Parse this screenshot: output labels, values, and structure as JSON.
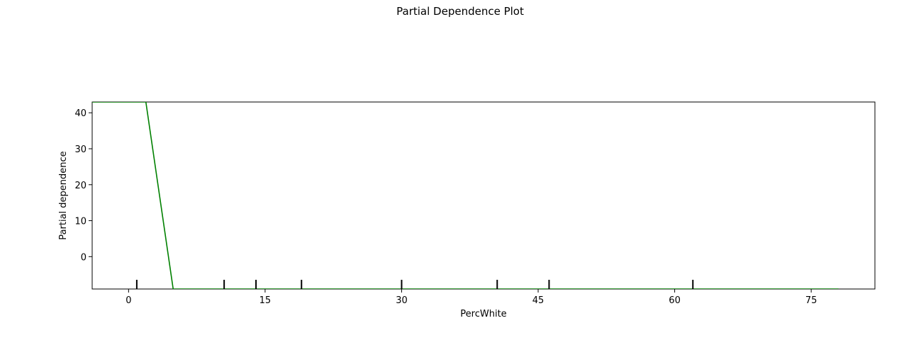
{
  "figure": {
    "title": "Partial Dependence Plot"
  },
  "chart_data": {
    "type": "line",
    "title": "Partial Dependence Plot",
    "xlabel": "PercWhite",
    "ylabel": "Partial dependence",
    "xlim": [
      -4,
      82
    ],
    "ylim": [
      -9,
      43
    ],
    "xticks": [
      0,
      15,
      30,
      45,
      60,
      75
    ],
    "yticks": [
      0,
      10,
      20,
      30,
      40
    ],
    "grid": false,
    "series": [
      {
        "color": "#008000",
        "x": [
          -4,
          1.5,
          1.9,
          4.9,
          78
        ],
        "y": [
          43,
          43,
          43,
          -9,
          -9
        ]
      }
    ],
    "rug": {
      "color": "#000000",
      "x": [
        0.9,
        10.5,
        14,
        19,
        30,
        40.5,
        46.2,
        62
      ]
    }
  }
}
